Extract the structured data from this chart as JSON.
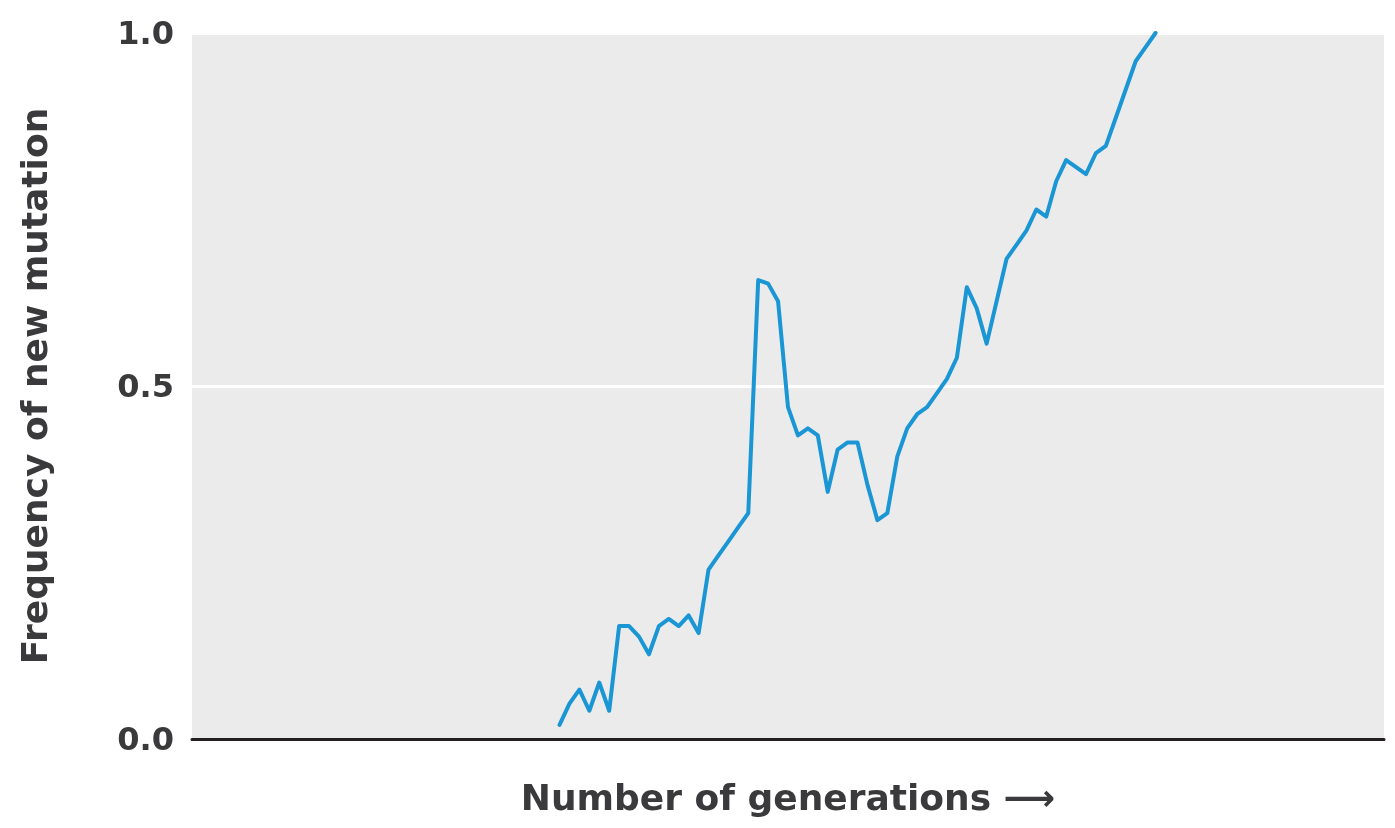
{
  "chart_data": {
    "type": "line",
    "ylabel": "Frequency of new mutation",
    "xlabel": "Number of generations ⟶",
    "categories": [
      null,
      null,
      null,
      null,
      null,
      null,
      null,
      null,
      null,
      null,
      null,
      null,
      null,
      null,
      null,
      null,
      null,
      null,
      null,
      null,
      null,
      null,
      null,
      null,
      null,
      null,
      null,
      null,
      null,
      null,
      null,
      null,
      null,
      null,
      null,
      null,
      null,
      null,
      null,
      null,
      null,
      null,
      null,
      null,
      null,
      null,
      null,
      null,
      null,
      null,
      null,
      null,
      null,
      null,
      null,
      null,
      null,
      null,
      null,
      null,
      null,
      null,
      null,
      null,
      null,
      null,
      null,
      null,
      null,
      null,
      null,
      null,
      null,
      null,
      null,
      null,
      null,
      null,
      null,
      null,
      null,
      null,
      null,
      null,
      null,
      null,
      null,
      null,
      null,
      null,
      null,
      null,
      null,
      null,
      null,
      null,
      null,
      null,
      null,
      null,
      null,
      null,
      null,
      null,
      null,
      null,
      null,
      null,
      null,
      null,
      null,
      null,
      null,
      null,
      null,
      null,
      null,
      null,
      null,
      null,
      null
    ],
    "series": [
      {
        "color": "#1a96d4",
        "values": [
          null,
          null,
          null,
          null,
          null,
          null,
          null,
          null,
          null,
          null,
          null,
          null,
          null,
          null,
          null,
          null,
          null,
          null,
          null,
          null,
          null,
          null,
          null,
          null,
          null,
          null,
          null,
          null,
          null,
          null,
          null,
          null,
          null,
          null,
          null,
          null,
          null,
          0.02,
          0.05,
          0.07,
          0.04,
          0.08,
          0.04,
          0.16,
          0.16,
          0.145,
          0.12,
          0.16,
          0.17,
          0.16,
          0.175,
          0.15,
          0.24,
          0.26,
          0.28,
          0.3,
          0.32,
          0.65,
          0.645,
          0.62,
          0.47,
          0.43,
          0.44,
          0.43,
          0.35,
          0.41,
          0.42,
          0.42,
          0.36,
          0.31,
          0.32,
          0.4,
          0.44,
          0.46,
          0.47,
          0.49,
          0.51,
          0.54,
          0.64,
          0.61,
          0.56,
          0.62,
          0.68,
          0.7,
          0.72,
          0.75,
          0.74,
          0.79,
          0.82,
          0.81,
          0.8,
          0.83,
          0.84,
          0.88,
          0.92,
          0.96,
          0.98,
          1.0,
          null,
          null,
          null,
          null,
          null,
          null,
          null,
          null,
          null,
          null,
          null,
          null,
          null,
          null,
          null,
          null,
          null,
          null,
          null,
          null,
          null,
          null,
          null
        ]
      }
    ],
    "ylim": [
      0,
      1
    ],
    "yticks": [
      {
        "value": 0,
        "label": "0.0"
      },
      {
        "value": 0.5,
        "label": "0.5"
      },
      {
        "value": 1,
        "label": "1.0"
      }
    ],
    "grid": "y",
    "marker": "none",
    "line_style": "solid"
  }
}
